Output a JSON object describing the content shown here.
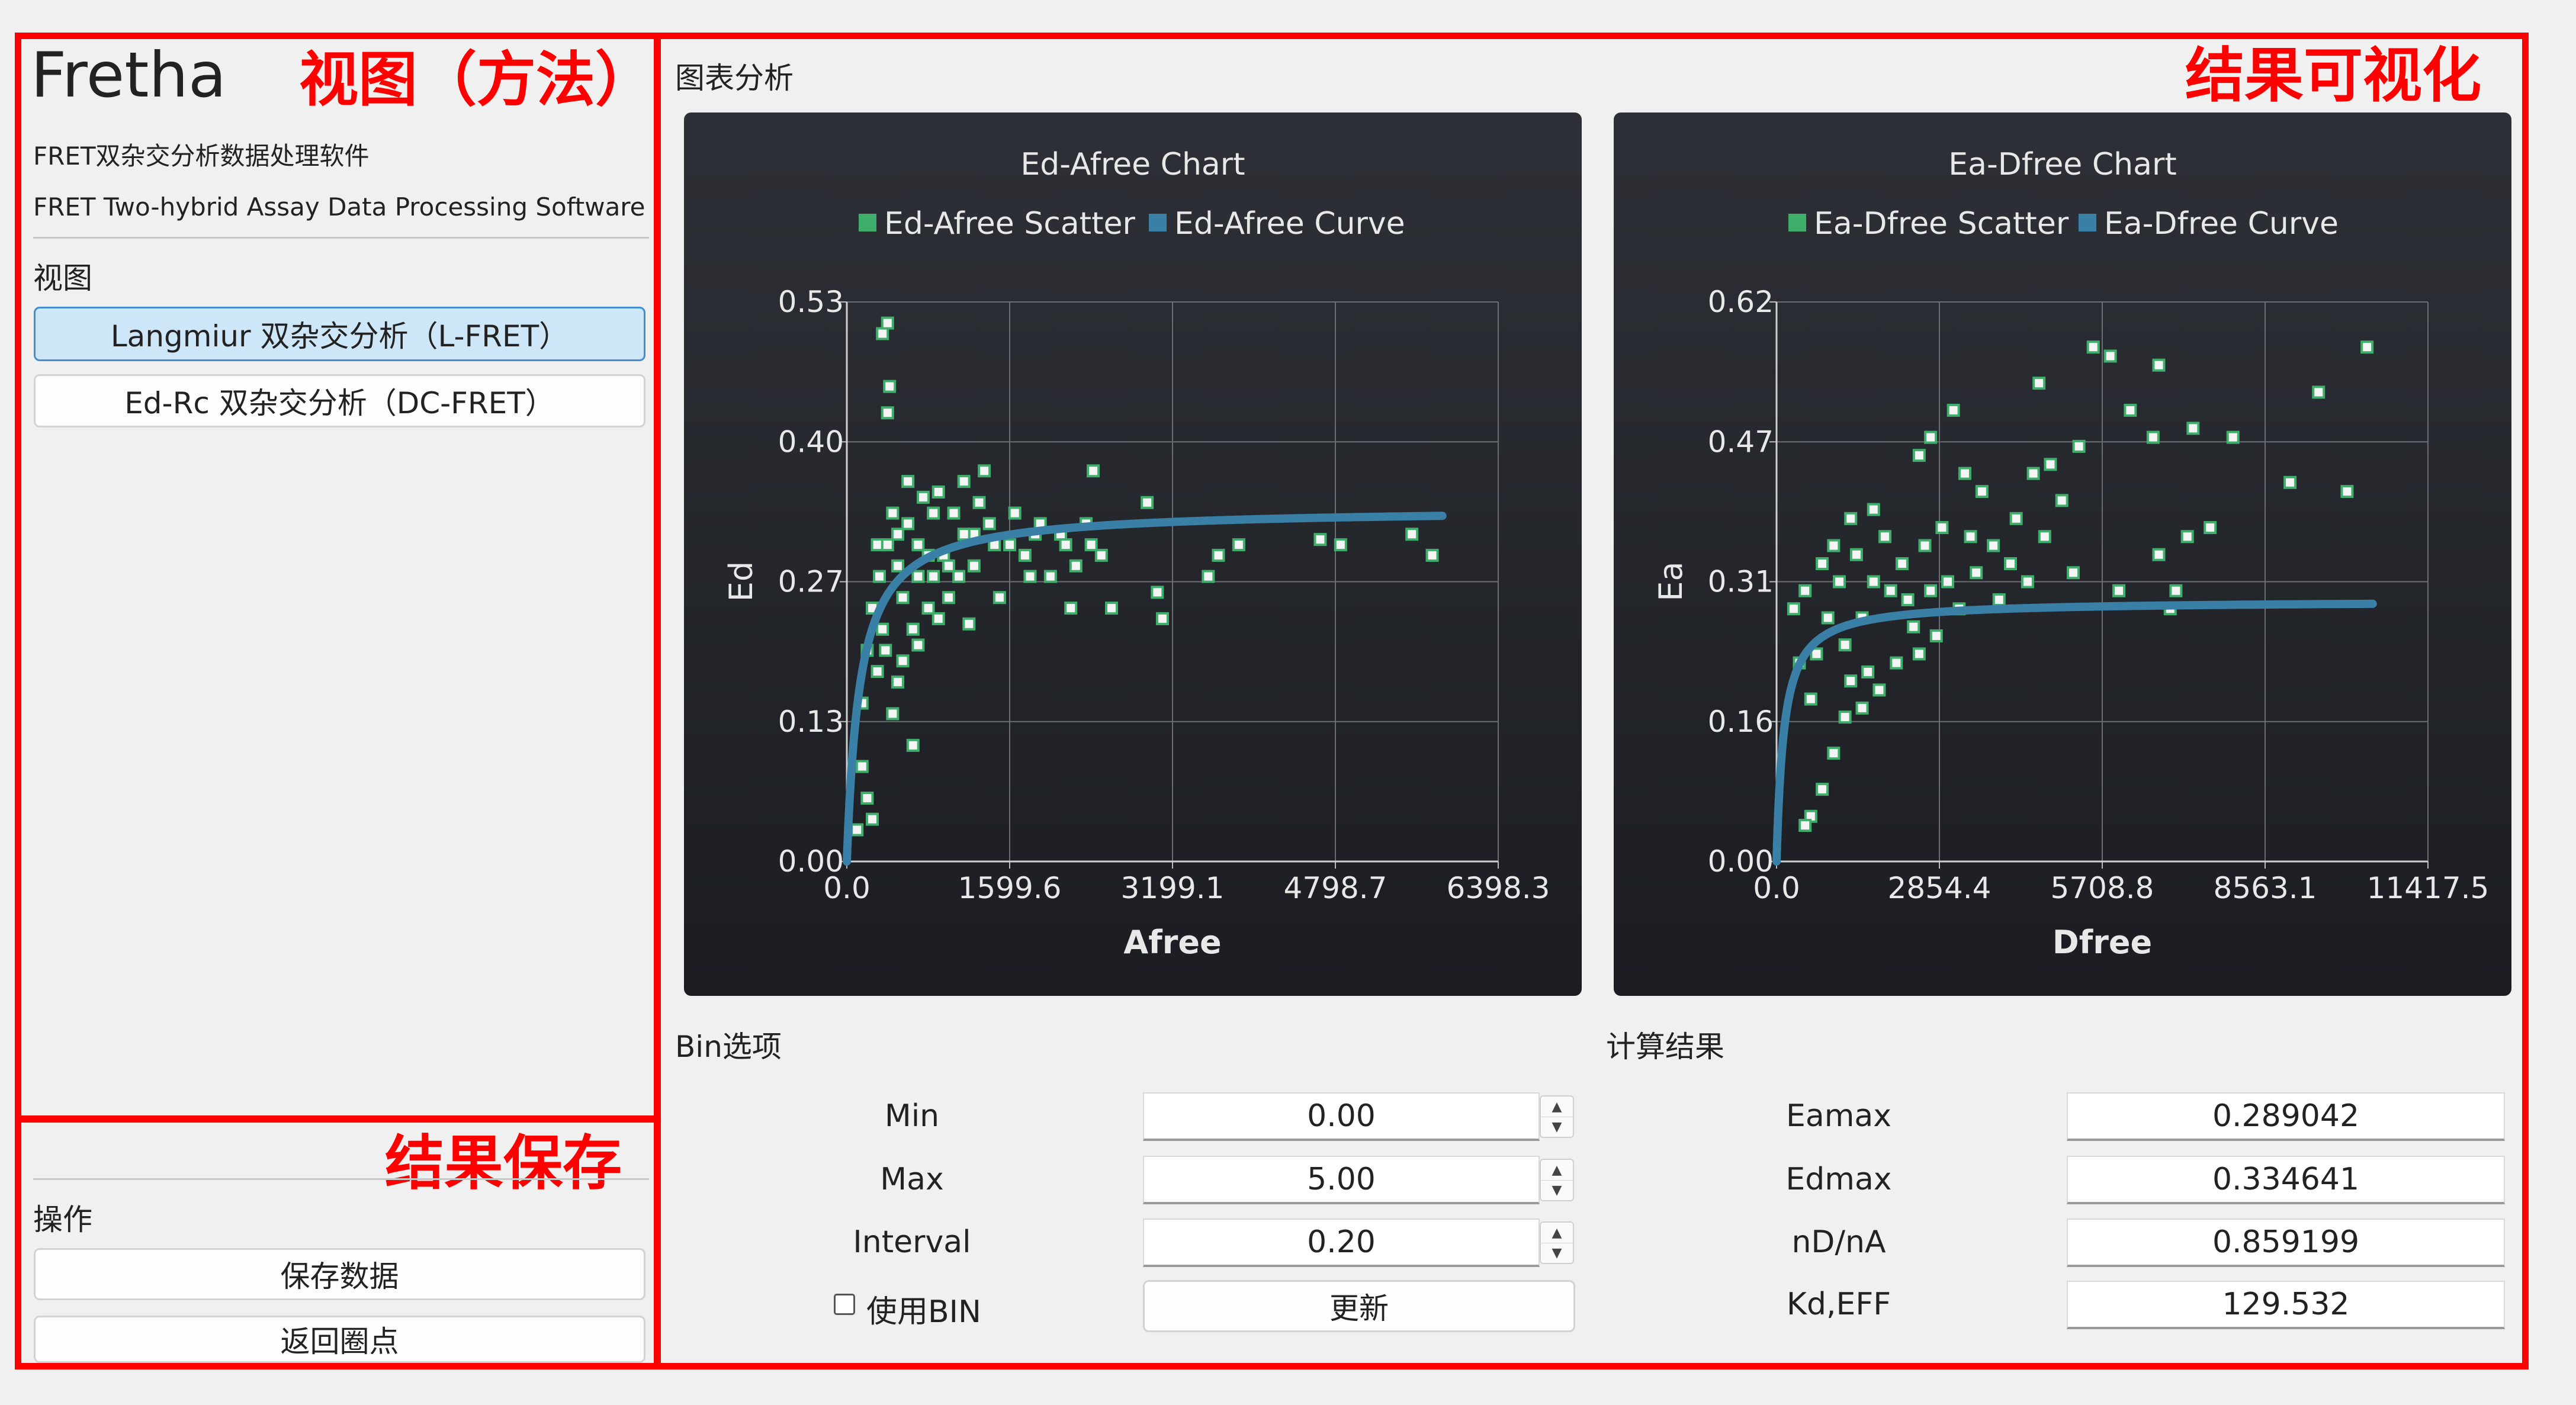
{
  "annotations": {
    "view": "视图（方法）",
    "result_vis": "结果可视化",
    "result_save": "结果保存"
  },
  "sidebar": {
    "app_name": "Fretha",
    "subtitle_cn": "FRET双杂交分析数据处理软件",
    "subtitle_en": "FRET Two-hybrid Assay Data Processing Software",
    "view_label": "视图",
    "views": [
      {
        "label": "Langmiur 双杂交分析（L-FRET）",
        "selected": true
      },
      {
        "label": "Ed-Rc 双杂交分析（DC-FRET）",
        "selected": false
      }
    ],
    "ops_label": "操作",
    "save_button": "保存数据",
    "back_button": "返回圈点"
  },
  "main": {
    "chart_section_label": "图表分析",
    "bin_section_label": "Bin选项",
    "result_section_label": "计算结果"
  },
  "bin": {
    "min_label": "Min",
    "min_value": "0.00",
    "max_label": "Max",
    "max_value": "5.00",
    "interval_label": "Interval",
    "interval_value": "0.20",
    "use_bin_label": "使用BIN",
    "update_button": "更新"
  },
  "results": [
    {
      "label": "Eamax",
      "value": "0.289042"
    },
    {
      "label": "Edmax",
      "value": "0.334641"
    },
    {
      "label": "nD/nA",
      "value": "0.859199"
    },
    {
      "label": "Kd,EFF",
      "value": "129.532"
    }
  ],
  "colors": {
    "annotation": "#ff0000",
    "scatter": "#3fae6a",
    "curve": "#3a7fa6",
    "chart_bg": "#24272c"
  },
  "chart_data": [
    {
      "type": "scatter",
      "title": "Ed-Afree Chart",
      "xlabel": "Afree",
      "ylabel": "Ed",
      "xlim": [
        0,
        6398.3
      ],
      "ylim": [
        0,
        0.53
      ],
      "xticks": [
        "0.0",
        "1599.6",
        "3199.1",
        "4798.7",
        "6398.3"
      ],
      "yticks": [
        "0.00",
        "0.13",
        "0.27",
        "0.40",
        "0.53"
      ],
      "grid": true,
      "legend_position": "top",
      "series": [
        {
          "name": "Ed-Afree Scatter",
          "kind": "scatter",
          "points": [
            [
              350,
              0.5
            ],
            [
              400,
              0.51
            ],
            [
              420,
              0.45
            ],
            [
              400,
              0.425
            ],
            [
              2420,
              0.37
            ],
            [
              2950,
              0.34
            ],
            [
              5550,
              0.31
            ],
            [
              5750,
              0.29
            ],
            [
              3100,
              0.23
            ],
            [
              3050,
              0.255
            ],
            [
              2600,
              0.24
            ],
            [
              3550,
              0.27
            ],
            [
              3850,
              0.3
            ],
            [
              3650,
              0.29
            ],
            [
              4650,
              0.305
            ],
            [
              4850,
              0.3
            ],
            [
              1800,
              0.27
            ],
            [
              2200,
              0.24
            ],
            [
              700,
              0.205
            ],
            [
              900,
              0.23
            ],
            [
              1200,
              0.225
            ],
            [
              1000,
              0.25
            ],
            [
              500,
              0.17
            ],
            [
              300,
              0.18
            ],
            [
              650,
              0.11
            ],
            [
              150,
              0.09
            ],
            [
              200,
              0.06
            ],
            [
              100,
              0.03
            ],
            [
              250,
              0.04
            ],
            [
              1450,
              0.3
            ],
            [
              1650,
              0.33
            ],
            [
              1900,
              0.32
            ],
            [
              2100,
              0.31
            ],
            [
              2350,
              0.32
            ],
            [
              1300,
              0.34
            ],
            [
              1150,
              0.36
            ],
            [
              1350,
              0.37
            ],
            [
              850,
              0.33
            ],
            [
              600,
              0.36
            ],
            [
              700,
              0.3
            ],
            [
              500,
              0.28
            ],
            [
              950,
              0.29
            ],
            [
              1100,
              0.27
            ],
            [
              1500,
              0.25
            ],
            [
              1750,
              0.29
            ],
            [
              2000,
              0.27
            ],
            [
              2250,
              0.28
            ],
            [
              2500,
              0.29
            ],
            [
              800,
              0.24
            ],
            [
              1250,
              0.31
            ],
            [
              450,
              0.33
            ],
            [
              550,
              0.25
            ],
            [
              650,
              0.22
            ],
            [
              350,
              0.22
            ],
            [
              250,
              0.24
            ],
            [
              300,
              0.3
            ],
            [
              400,
              0.3
            ],
            [
              600,
              0.32
            ],
            [
              750,
              0.345
            ],
            [
              900,
              0.35
            ],
            [
              1050,
              0.33
            ],
            [
              1150,
              0.31
            ],
            [
              1400,
              0.32
            ],
            [
              1600,
              0.3
            ],
            [
              1850,
              0.31
            ],
            [
              2150,
              0.3
            ],
            [
              2400,
              0.3
            ],
            [
              700,
              0.27
            ],
            [
              850,
              0.27
            ],
            [
              1000,
              0.28
            ],
            [
              1250,
              0.28
            ],
            [
              550,
              0.19
            ],
            [
              450,
              0.14
            ],
            [
              380,
              0.2
            ],
            [
              320,
              0.27
            ],
            [
              200,
              0.2
            ],
            [
              150,
              0.15
            ],
            [
              500,
              0.31
            ],
            [
              800,
              0.29
            ]
          ]
        },
        {
          "name": "Ed-Afree Curve",
          "kind": "line",
          "Bmax": 0.334641,
          "K": 129.532,
          "xmax": 5850
        }
      ]
    },
    {
      "type": "scatter",
      "title": "Ea-Dfree Chart",
      "xlabel": "Dfree",
      "ylabel": "Ea",
      "xlim": [
        0,
        11417.5
      ],
      "ylim": [
        0,
        0.62
      ],
      "xticks": [
        "0.0",
        "2854.4",
        "5708.8",
        "8563.1",
        "11417.5"
      ],
      "yticks": [
        "0.00",
        "0.16",
        "0.31",
        "0.47",
        "0.62"
      ],
      "grid": true,
      "legend_position": "top",
      "series": [
        {
          "name": "Ea-Dfree Scatter",
          "kind": "scatter",
          "points": [
            [
              5550,
              0.57
            ],
            [
              5850,
              0.56
            ],
            [
              6700,
              0.55
            ],
            [
              10350,
              0.57
            ],
            [
              9500,
              0.52
            ],
            [
              4600,
              0.53
            ],
            [
              3100,
              0.5
            ],
            [
              6200,
              0.5
            ],
            [
              6600,
              0.47
            ],
            [
              7300,
              0.48
            ],
            [
              8000,
              0.47
            ],
            [
              9000,
              0.42
            ],
            [
              10000,
              0.41
            ],
            [
              7200,
              0.36
            ],
            [
              7600,
              0.37
            ],
            [
              6700,
              0.34
            ],
            [
              5000,
              0.4
            ],
            [
              4200,
              0.38
            ],
            [
              3800,
              0.35
            ],
            [
              5200,
              0.32
            ],
            [
              6000,
              0.3
            ],
            [
              6900,
              0.28
            ],
            [
              7000,
              0.3
            ],
            [
              4800,
              0.44
            ],
            [
              5300,
              0.46
            ],
            [
              4500,
              0.43
            ],
            [
              2700,
              0.47
            ],
            [
              2500,
              0.45
            ],
            [
              3300,
              0.43
            ],
            [
              3600,
              0.41
            ],
            [
              4100,
              0.33
            ],
            [
              3500,
              0.32
            ],
            [
              2900,
              0.37
            ],
            [
              3200,
              0.28
            ],
            [
              2800,
              0.25
            ],
            [
              2500,
              0.23
            ],
            [
              1800,
              0.19
            ],
            [
              1500,
              0.17
            ],
            [
              1200,
              0.16
            ],
            [
              1000,
              0.12
            ],
            [
              800,
              0.08
            ],
            [
              600,
              0.05
            ],
            [
              500,
              0.04
            ],
            [
              2000,
              0.3
            ],
            [
              2200,
              0.33
            ],
            [
              1900,
              0.36
            ],
            [
              1700,
              0.39
            ],
            [
              1400,
              0.34
            ],
            [
              1300,
              0.38
            ],
            [
              1100,
              0.31
            ],
            [
              900,
              0.27
            ],
            [
              700,
              0.23
            ],
            [
              600,
              0.18
            ],
            [
              400,
              0.22
            ],
            [
              300,
              0.28
            ],
            [
              500,
              0.3
            ],
            [
              800,
              0.33
            ],
            [
              1000,
              0.35
            ],
            [
              1200,
              0.24
            ],
            [
              1500,
              0.27
            ],
            [
              1700,
              0.31
            ],
            [
              2300,
              0.29
            ],
            [
              2600,
              0.35
            ],
            [
              3000,
              0.31
            ],
            [
              2100,
              0.22
            ],
            [
              1600,
              0.21
            ],
            [
              1300,
              0.2
            ],
            [
              2400,
              0.26
            ],
            [
              2700,
              0.3
            ],
            [
              3400,
              0.36
            ],
            [
              3900,
              0.29
            ],
            [
              4400,
              0.31
            ],
            [
              4700,
              0.36
            ]
          ]
        },
        {
          "name": "Ea-Dfree Curve",
          "kind": "line",
          "Bmax": 0.289042,
          "K": 129.532,
          "xmax": 10450
        }
      ]
    }
  ]
}
